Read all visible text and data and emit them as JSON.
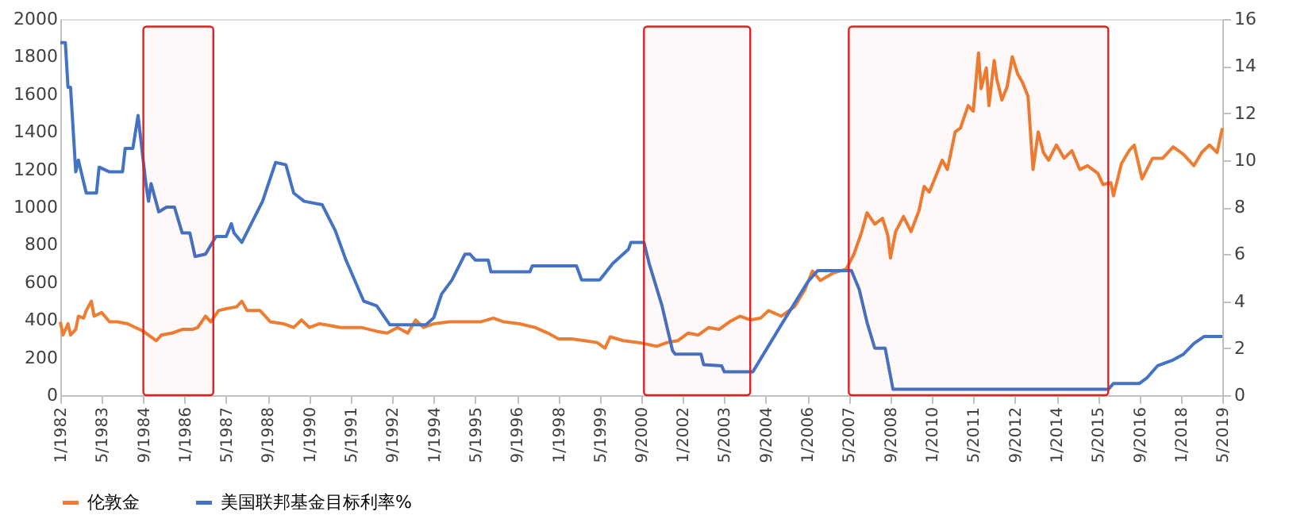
{
  "chart_data": {
    "type": "line",
    "xlim": [
      "1982-01",
      "2019-05"
    ],
    "xticks": [
      {
        "value": "1982-01",
        "label": "1/1982"
      },
      {
        "value": "1983-05",
        "label": "5/1983"
      },
      {
        "value": "1984-09",
        "label": "9/1984"
      },
      {
        "value": "1986-01",
        "label": "1/1986"
      },
      {
        "value": "1987-05",
        "label": "5/1987"
      },
      {
        "value": "1988-09",
        "label": "9/1988"
      },
      {
        "value": "1990-01",
        "label": "1/1990"
      },
      {
        "value": "1991-05",
        "label": "5/1991"
      },
      {
        "value": "1992-09",
        "label": "9/1992"
      },
      {
        "value": "1994-01",
        "label": "1/1994"
      },
      {
        "value": "1995-05",
        "label": "5/1995"
      },
      {
        "value": "1996-09",
        "label": "9/1996"
      },
      {
        "value": "1998-01",
        "label": "1/1998"
      },
      {
        "value": "1999-05",
        "label": "5/1999"
      },
      {
        "value": "2000-09",
        "label": "9/2000"
      },
      {
        "value": "2002-01",
        "label": "1/2002"
      },
      {
        "value": "2003-05",
        "label": "5/2003"
      },
      {
        "value": "2004-09",
        "label": "9/2004"
      },
      {
        "value": "2006-01",
        "label": "1/2006"
      },
      {
        "value": "2007-05",
        "label": "5/2007"
      },
      {
        "value": "2008-09",
        "label": "9/2008"
      },
      {
        "value": "2010-01",
        "label": "1/2010"
      },
      {
        "value": "2011-05",
        "label": "5/2011"
      },
      {
        "value": "2012-09",
        "label": "9/2012"
      },
      {
        "value": "2014-01",
        "label": "1/2014"
      },
      {
        "value": "2015-05",
        "label": "5/2015"
      },
      {
        "value": "2016-09",
        "label": "9/2016"
      },
      {
        "value": "2018-01",
        "label": "1/2018"
      },
      {
        "value": "2019-05",
        "label": "5/2019"
      }
    ],
    "ylim": [
      0,
      2000
    ],
    "yticks": [
      0,
      200,
      400,
      600,
      800,
      1000,
      1200,
      1400,
      1600,
      1800,
      2000
    ],
    "y2lim": [
      0,
      16
    ],
    "y2ticks": [
      0,
      2,
      4,
      6,
      8,
      10,
      12,
      14,
      16
    ],
    "grid": false,
    "legend": "bottom",
    "line_style": "solid",
    "marker": "none",
    "series": [
      {
        "name": "伦敦金",
        "color": "#ed7d31",
        "x": [
          "1982-01",
          "1982-02",
          "1982-04",
          "1982-05",
          "1982-07",
          "1982-08",
          "1982-10",
          "1982-11",
          "1983-01",
          "1983-02",
          "1983-05",
          "1983-08",
          "1983-11",
          "1984-03",
          "1984-06",
          "1984-09",
          "1984-12",
          "1985-02",
          "1985-04",
          "1985-08",
          "1985-12",
          "1986-04",
          "1986-06",
          "1986-09",
          "1986-11",
          "1987-02",
          "1987-05",
          "1987-09",
          "1987-11",
          "1988-01",
          "1988-06",
          "1988-10",
          "1989-03",
          "1989-07",
          "1989-10",
          "1990-01",
          "1990-05",
          "1990-09",
          "1991-01",
          "1991-05",
          "1991-09",
          "1992-03",
          "1992-07",
          "1992-11",
          "1993-03",
          "1993-06",
          "1993-09",
          "1994-01",
          "1994-07",
          "1995-01",
          "1995-07",
          "1995-12",
          "1996-04",
          "1996-10",
          "1997-04",
          "1997-09",
          "1998-01",
          "1998-06",
          "1998-11",
          "1999-04",
          "1999-07",
          "1999-09",
          "2000-02",
          "2000-08",
          "2001-03",
          "2001-07",
          "2001-11",
          "2002-03",
          "2002-07",
          "2002-11",
          "2003-03",
          "2003-07",
          "2003-11",
          "2004-03",
          "2004-07",
          "2004-10",
          "2005-03",
          "2005-08",
          "2005-12",
          "2006-03",
          "2006-06",
          "2006-11",
          "2007-04",
          "2007-07",
          "2007-10",
          "2007-12",
          "2008-03",
          "2008-06",
          "2008-08",
          "2008-09",
          "2008-11",
          "2009-02",
          "2009-05",
          "2009-08",
          "2009-10",
          "2009-12",
          "2010-03",
          "2010-05",
          "2010-07",
          "2010-10",
          "2010-12",
          "2011-03",
          "2011-05",
          "2011-07",
          "2011-08",
          "2011-10",
          "2011-11",
          "2012-01",
          "2012-02",
          "2012-04",
          "2012-06",
          "2012-08",
          "2012-10",
          "2012-12",
          "2013-02",
          "2013-04",
          "2013-06",
          "2013-08",
          "2013-10",
          "2014-01",
          "2014-04",
          "2014-07",
          "2014-10",
          "2015-01",
          "2015-05",
          "2015-07",
          "2015-10",
          "2015-11",
          "2016-02",
          "2016-05",
          "2016-07",
          "2016-10",
          "2017-02",
          "2017-06",
          "2017-10",
          "2018-02",
          "2018-06",
          "2018-09",
          "2018-12",
          "2019-03",
          "2019-05"
        ],
        "values": [
          390,
          320,
          380,
          320,
          350,
          420,
          410,
          450,
          500,
          420,
          440,
          390,
          390,
          380,
          360,
          340,
          310,
          290,
          320,
          330,
          350,
          350,
          360,
          420,
          390,
          450,
          460,
          470,
          500,
          450,
          450,
          390,
          380,
          360,
          400,
          360,
          380,
          370,
          360,
          360,
          360,
          340,
          330,
          360,
          330,
          400,
          360,
          380,
          390,
          390,
          390,
          410,
          390,
          380,
          360,
          330,
          300,
          300,
          290,
          280,
          250,
          310,
          290,
          280,
          260,
          280,
          290,
          330,
          320,
          360,
          350,
          390,
          420,
          400,
          410,
          450,
          420,
          470,
          560,
          660,
          610,
          650,
          670,
          750,
          870,
          970,
          910,
          940,
          850,
          730,
          870,
          950,
          870,
          980,
          1110,
          1080,
          1180,
          1250,
          1200,
          1400,
          1420,
          1540,
          1510,
          1820,
          1630,
          1740,
          1540,
          1780,
          1680,
          1570,
          1640,
          1800,
          1710,
          1660,
          1590,
          1200,
          1400,
          1290,
          1250,
          1330,
          1260,
          1300,
          1200,
          1220,
          1180,
          1120,
          1130,
          1060,
          1230,
          1300,
          1330,
          1150,
          1260,
          1260,
          1320,
          1280,
          1220,
          1290,
          1330,
          1290,
          1420
        ]
      },
      {
        "name": "美国联邦基金目标利率%",
        "color": "#4472c4",
        "axis": "y2",
        "x": [
          "1982-01",
          "1982-03",
          "1982-04",
          "1982-05",
          "1982-07",
          "1982-08",
          "1982-11",
          "1983-03",
          "1983-04",
          "1983-08",
          "1984-01",
          "1984-02",
          "1984-05",
          "1984-07",
          "1984-10",
          "1984-11",
          "1984-12",
          "1985-03",
          "1985-06",
          "1985-09",
          "1985-12",
          "1986-03",
          "1986-05",
          "1986-09",
          "1987-01",
          "1987-05",
          "1987-07",
          "1987-08",
          "1987-11",
          "1988-07",
          "1988-12",
          "1989-04",
          "1989-07",
          "1989-11",
          "1990-06",
          "1990-11",
          "1991-03",
          "1991-10",
          "1992-03",
          "1992-08",
          "1993-10",
          "1994-01",
          "1994-04",
          "1994-08",
          "1995-01",
          "1995-03",
          "1995-05",
          "1995-10",
          "1995-11",
          "1997-02",
          "1997-03",
          "1998-08",
          "1998-10",
          "1999-05",
          "1999-10",
          "2000-04",
          "2000-05",
          "2000-10",
          "2000-12",
          "2001-05",
          "2001-09",
          "2001-10",
          "2002-08",
          "2002-09",
          "2003-04",
          "2003-05",
          "2004-04",
          "2005-03",
          "2006-01",
          "2006-05",
          "2007-06",
          "2007-09",
          "2007-12",
          "2008-03",
          "2008-07",
          "2008-10",
          "2015-09",
          "2015-11",
          "2016-09",
          "2016-12",
          "2017-04",
          "2017-10",
          "2018-02",
          "2018-06",
          "2018-10",
          "2019-05"
        ],
        "values": [
          15.0,
          15.0,
          13.1,
          13.1,
          9.5,
          10.0,
          8.6,
          8.6,
          9.7,
          9.5,
          9.5,
          10.5,
          10.5,
          11.9,
          9.0,
          8.25,
          9.0,
          7.8,
          8.0,
          8.0,
          6.9,
          6.9,
          5.9,
          6.0,
          6.75,
          6.75,
          7.3,
          6.9,
          6.5,
          8.25,
          9.9,
          9.8,
          8.6,
          8.25,
          8.1,
          7.0,
          5.8,
          4.0,
          3.8,
          3.0,
          3.0,
          3.3,
          4.3,
          4.9,
          6.0,
          6.0,
          5.75,
          5.75,
          5.25,
          5.25,
          5.5,
          5.5,
          4.9,
          4.9,
          5.6,
          6.2,
          6.5,
          6.5,
          5.6,
          3.8,
          1.9,
          1.75,
          1.75,
          1.3,
          1.25,
          1.0,
          1.0,
          3.0,
          4.8,
          5.3,
          5.3,
          4.5,
          3.1,
          2.0,
          2.0,
          0.25,
          0.25,
          0.5,
          0.5,
          0.75,
          1.25,
          1.5,
          1.75,
          2.2,
          2.5,
          2.5
        ]
      }
    ],
    "bands": [
      {
        "axis": "x",
        "from": "1984-09",
        "to": "1986-12",
        "color": "#e02020"
      },
      {
        "axis": "x",
        "from": "2000-10",
        "to": "2004-03",
        "color": "#e02020"
      },
      {
        "axis": "x",
        "from": "2007-05",
        "to": "2015-09",
        "color": "#e02020"
      }
    ]
  }
}
